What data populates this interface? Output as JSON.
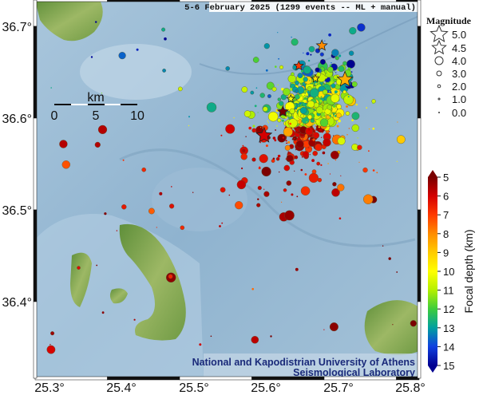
{
  "title": "5-6 February 2025 (1299 events -- ML + manual)",
  "institution": {
    "line1": "National and Kapodistrian University of Athens",
    "line2": "Seismological Laboratory"
  },
  "axes": {
    "lon_ticks": [
      "25.3°",
      "25.4°",
      "25.5°",
      "25.6°",
      "25.7°",
      "25.8°"
    ],
    "lat_ticks": [
      "36.7°",
      "36.6°",
      "36.5°",
      "36.4°"
    ]
  },
  "scale_bar": {
    "unit": "km",
    "labels": [
      "0",
      "5",
      "10"
    ]
  },
  "magnitude_legend": {
    "title": "Magnitude",
    "entries": [
      {
        "label": "5.0",
        "symbol": "star"
      },
      {
        "label": "4.5",
        "symbol": "star"
      },
      {
        "label": "4.0",
        "symbol": "circle"
      },
      {
        "label": "3.0",
        "symbol": "circle"
      },
      {
        "label": "2.0",
        "symbol": "circle"
      },
      {
        "label": "1.0",
        "symbol": "circle"
      },
      {
        "label": "0.0",
        "symbol": "circle"
      }
    ]
  },
  "depth_colorbar": {
    "label": "Focal depth (km)",
    "ticks": [
      "5",
      "6",
      "7",
      "8",
      "9",
      "10",
      "11",
      "12",
      "13",
      "14",
      "15"
    ],
    "range_km": [
      5,
      15
    ],
    "colors": [
      "#7a0000",
      "#d40000",
      "#ff3a00",
      "#ff8c00",
      "#ffcc00",
      "#ffff00",
      "#b4f000",
      "#3ccc3c",
      "#00a0a0",
      "#1040e0",
      "#000090"
    ]
  },
  "large_events": [
    {
      "lon": 25.677,
      "lat": 36.679,
      "mag": 4.7,
      "depth": 8
    },
    {
      "lon": 25.645,
      "lat": 36.657,
      "mag": 4.6,
      "depth": 7
    },
    {
      "lon": 25.709,
      "lat": 36.642,
      "mag": 5.0,
      "depth": 8.5
    },
    {
      "lon": 25.668,
      "lat": 36.643,
      "mag": 4.5,
      "depth": 9.5
    },
    {
      "lon": 25.634,
      "lat": 36.621,
      "mag": 4.5,
      "depth": 10
    },
    {
      "lon": 25.623,
      "lat": 36.607,
      "mag": 4.7,
      "depth": 5
    },
    {
      "lon": 25.597,
      "lat": 36.581,
      "mag": 5.0,
      "depth": 6
    }
  ]
}
